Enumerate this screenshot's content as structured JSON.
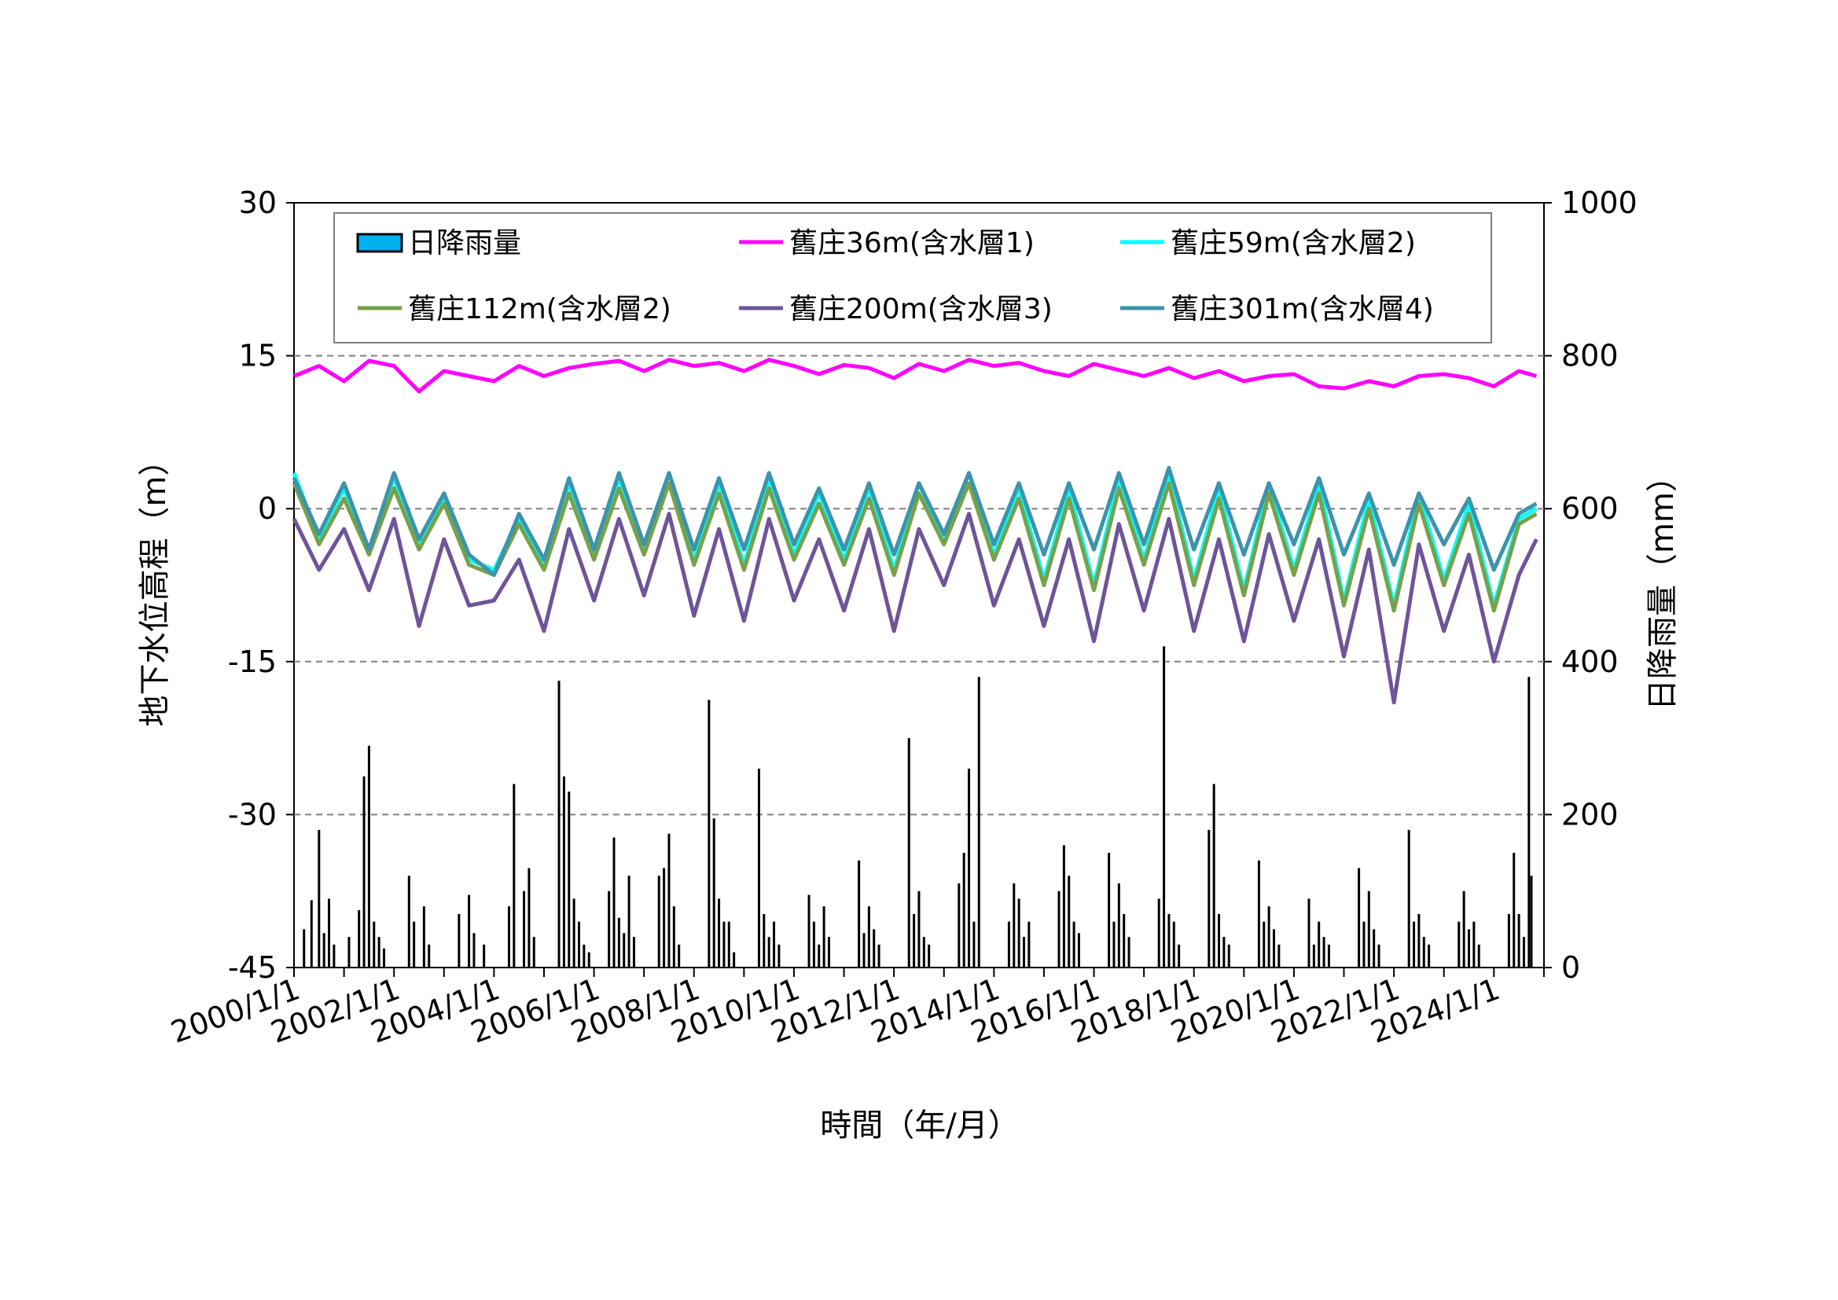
{
  "chart_data": {
    "type": "line",
    "xlabel": "時間（年/月）",
    "ylabel_left": "地下水位高程（m）",
    "ylabel_right": "日降雨量（mm）",
    "ylim_left": [
      -45,
      30
    ],
    "ylim_right": [
      0,
      1000
    ],
    "yticks_left": [
      "30",
      "15",
      "0",
      "-15",
      "-30",
      "-45"
    ],
    "yticks_right": [
      "1000",
      "800",
      "600",
      "400",
      "200",
      "0"
    ],
    "xlim": [
      "2000/1/1",
      "2024/12/31"
    ],
    "xticks": [
      "2000/1/1",
      "2002/1/1",
      "2004/1/1",
      "2006/1/1",
      "2008/1/1",
      "2010/1/1",
      "2012/1/1",
      "2014/1/1",
      "2016/1/1",
      "2018/1/1",
      "2020/1/1",
      "2022/1/1",
      "2024/1/1"
    ],
    "grid": "horizontal dashed",
    "legend_position": "top",
    "legend": [
      {
        "label": "日降雨量",
        "color": "#00b0f0",
        "type": "bar"
      },
      {
        "label": "舊庄36m(含水層1)",
        "color": "#ff00ff",
        "type": "line"
      },
      {
        "label": "舊庄59m(含水層2)",
        "color": "#00ffff",
        "type": "line"
      },
      {
        "label": "舊庄112m(含水層2)",
        "color": "#77a14a",
        "type": "line"
      },
      {
        "label": "舊庄200m(含水層3)",
        "color": "#6e5499",
        "type": "line"
      },
      {
        "label": "舊庄301m(含水層4)",
        "color": "#3d93ab",
        "type": "line"
      }
    ],
    "series": [
      {
        "name": "舊庄36m(含水層1)",
        "color": "#ff00ff",
        "x": [
          2000.0,
          2000.5,
          2001.0,
          2001.5,
          2002.0,
          2002.5,
          2003.0,
          2003.5,
          2004.0,
          2004.5,
          2005.0,
          2005.5,
          2006.0,
          2006.5,
          2007.0,
          2007.5,
          2008.0,
          2008.5,
          2009.0,
          2009.5,
          2010.0,
          2010.5,
          2011.0,
          2011.5,
          2012.0,
          2012.5,
          2013.0,
          2013.5,
          2014.0,
          2014.5,
          2015.0,
          2015.5,
          2016.0,
          2016.5,
          2017.0,
          2017.5,
          2018.0,
          2018.5,
          2019.0,
          2019.5,
          2020.0,
          2020.5,
          2021.0,
          2021.5,
          2022.0,
          2022.5,
          2023.0,
          2023.5,
          2024.0,
          2024.5,
          2024.85
        ],
        "y": [
          13.0,
          14.0,
          12.5,
          14.5,
          14.0,
          11.5,
          13.5,
          13.0,
          12.5,
          14.0,
          13.0,
          13.8,
          14.2,
          14.5,
          13.5,
          14.6,
          14.0,
          14.3,
          13.5,
          14.6,
          14.0,
          13.2,
          14.1,
          13.8,
          12.8,
          14.2,
          13.5,
          14.6,
          14.0,
          14.3,
          13.5,
          13.0,
          14.2,
          13.6,
          13.0,
          13.8,
          12.8,
          13.5,
          12.5,
          13.0,
          13.2,
          12.0,
          11.8,
          12.5,
          12.0,
          13.0,
          13.2,
          12.8,
          12.0,
          13.5,
          13.0
        ]
      },
      {
        "name": "舊庄59m(含水層2)",
        "color": "#00ffff",
        "x": [
          2000.0,
          2000.5,
          2001.0,
          2001.5,
          2002.0,
          2002.5,
          2003.0,
          2003.5,
          2004.0,
          2004.5,
          2005.0,
          2005.5,
          2006.0,
          2006.5,
          2007.0,
          2007.5,
          2008.0,
          2008.5,
          2009.0,
          2009.5,
          2010.0,
          2010.5,
          2011.0,
          2011.5,
          2012.0,
          2012.5,
          2013.0,
          2013.5,
          2014.0,
          2014.5,
          2015.0,
          2015.5,
          2016.0,
          2016.5,
          2017.0,
          2017.5,
          2018.0,
          2018.5,
          2019.0,
          2019.5,
          2020.0,
          2020.5,
          2021.0,
          2021.5,
          2022.0,
          2022.5,
          2023.0,
          2023.5,
          2024.0,
          2024.5,
          2024.85
        ],
        "y": [
          3.5,
          -3.0,
          2.0,
          -4.0,
          3.0,
          -3.5,
          1.0,
          -5.0,
          -6.0,
          -1.0,
          -5.5,
          2.5,
          -4.5,
          3.0,
          -4.0,
          3.5,
          -5.0,
          2.5,
          -5.5,
          3.0,
          -4.5,
          1.5,
          -5.0,
          2.0,
          -6.0,
          2.5,
          -3.0,
          3.5,
          -4.5,
          2.0,
          -7.0,
          2.0,
          -7.5,
          3.0,
          -5.0,
          3.5,
          -7.0,
          2.0,
          -8.0,
          2.5,
          -6.0,
          2.5,
          -9.0,
          1.0,
          -9.5,
          1.5,
          -7.0,
          0.5,
          -9.5,
          -1.0,
          0.0
        ]
      },
      {
        "name": "舊庄112m(含水層2)",
        "color": "#77a14a",
        "x": [
          2000.0,
          2000.5,
          2001.0,
          2001.5,
          2002.0,
          2002.5,
          2003.0,
          2003.5,
          2004.0,
          2004.5,
          2005.0,
          2005.5,
          2006.0,
          2006.5,
          2007.0,
          2007.5,
          2008.0,
          2008.5,
          2009.0,
          2009.5,
          2010.0,
          2010.5,
          2011.0,
          2011.5,
          2012.0,
          2012.5,
          2013.0,
          2013.5,
          2014.0,
          2014.5,
          2015.0,
          2015.5,
          2016.0,
          2016.5,
          2017.0,
          2017.5,
          2018.0,
          2018.5,
          2019.0,
          2019.5,
          2020.0,
          2020.5,
          2021.0,
          2021.5,
          2022.0,
          2022.5,
          2023.0,
          2023.5,
          2024.0,
          2024.5,
          2024.85
        ],
        "y": [
          2.5,
          -3.5,
          1.0,
          -4.5,
          2.0,
          -4.0,
          0.5,
          -5.5,
          -6.5,
          -1.5,
          -6.0,
          1.5,
          -5.0,
          2.0,
          -4.5,
          2.5,
          -5.5,
          1.5,
          -6.0,
          2.0,
          -5.0,
          0.5,
          -5.5,
          1.0,
          -6.5,
          1.5,
          -3.5,
          2.5,
          -5.0,
          1.0,
          -7.5,
          1.0,
          -8.0,
          2.0,
          -5.5,
          2.5,
          -7.5,
          1.0,
          -8.5,
          1.5,
          -6.5,
          1.5,
          -9.5,
          0.0,
          -10.0,
          0.5,
          -7.5,
          -0.5,
          -10.0,
          -1.5,
          -0.5
        ]
      },
      {
        "name": "舊庄200m(含水層3)",
        "color": "#6e5499",
        "x": [
          2000.0,
          2000.5,
          2001.0,
          2001.5,
          2002.0,
          2002.5,
          2003.0,
          2003.5,
          2004.0,
          2004.5,
          2005.0,
          2005.5,
          2006.0,
          2006.5,
          2007.0,
          2007.5,
          2008.0,
          2008.5,
          2009.0,
          2009.5,
          2010.0,
          2010.5,
          2011.0,
          2011.5,
          2012.0,
          2012.5,
          2013.0,
          2013.5,
          2014.0,
          2014.5,
          2015.0,
          2015.5,
          2016.0,
          2016.5,
          2017.0,
          2017.5,
          2018.0,
          2018.5,
          2019.0,
          2019.5,
          2020.0,
          2020.5,
          2021.0,
          2021.5,
          2022.0,
          2022.5,
          2023.0,
          2023.5,
          2024.0,
          2024.5,
          2024.85
        ],
        "y": [
          -1.0,
          -6.0,
          -2.0,
          -8.0,
          -1.0,
          -11.5,
          -3.0,
          -9.5,
          -9.0,
          -5.0,
          -12.0,
          -2.0,
          -9.0,
          -1.0,
          -8.5,
          -0.5,
          -10.5,
          -2.0,
          -11.0,
          -1.0,
          -9.0,
          -3.0,
          -10.0,
          -2.0,
          -12.0,
          -2.0,
          -7.5,
          -0.5,
          -9.5,
          -3.0,
          -11.5,
          -3.0,
          -13.0,
          -1.5,
          -10.0,
          -1.0,
          -12.0,
          -3.0,
          -13.0,
          -2.5,
          -11.0,
          -3.0,
          -14.5,
          -4.0,
          -19.0,
          -3.5,
          -12.0,
          -4.5,
          -15.0,
          -6.5,
          -3.0
        ]
      },
      {
        "name": "舊庄301m(含水層4)",
        "color": "#3d93ab",
        "x": [
          2000.0,
          2000.5,
          2001.0,
          2001.5,
          2002.0,
          2002.5,
          2003.0,
          2003.5,
          2004.0,
          2004.5,
          2005.0,
          2005.5,
          2006.0,
          2006.5,
          2007.0,
          2007.5,
          2008.0,
          2008.5,
          2009.0,
          2009.5,
          2010.0,
          2010.5,
          2011.0,
          2011.5,
          2012.0,
          2012.5,
          2013.0,
          2013.5,
          2014.0,
          2014.5,
          2015.0,
          2015.5,
          2016.0,
          2016.5,
          2017.0,
          2017.5,
          2018.0,
          2018.5,
          2019.0,
          2019.5,
          2020.0,
          2020.5,
          2021.0,
          2021.5,
          2022.0,
          2022.5,
          2023.0,
          2023.5,
          2024.0,
          2024.5,
          2024.85
        ],
        "y": [
          3.0,
          -2.5,
          2.5,
          -4.0,
          3.5,
          -3.0,
          1.5,
          -4.5,
          -6.5,
          -0.5,
          -5.0,
          3.0,
          -4.0,
          3.5,
          -3.5,
          3.5,
          -4.0,
          3.0,
          -4.0,
          3.5,
          -3.5,
          2.0,
          -4.0,
          2.5,
          -4.5,
          2.5,
          -2.5,
          3.5,
          -3.5,
          2.5,
          -4.5,
          2.5,
          -4.0,
          3.5,
          -3.5,
          4.0,
          -4.0,
          2.5,
          -4.5,
          2.5,
          -3.5,
          3.0,
          -4.5,
          1.5,
          -5.5,
          1.5,
          -3.5,
          1.0,
          -6.0,
          -0.5,
          0.5
        ]
      }
    ],
    "rainfall": {
      "name": "日降雨量",
      "unit": "mm",
      "color": "#000000",
      "x": [
        2000.2,
        2000.35,
        2000.5,
        2000.6,
        2000.7,
        2000.8,
        2001.1,
        2001.3,
        2001.4,
        2001.5,
        2001.6,
        2001.7,
        2001.8,
        2002.3,
        2002.4,
        2002.6,
        2002.7,
        2003.3,
        2003.5,
        2003.6,
        2003.8,
        2004.3,
        2004.4,
        2004.6,
        2004.7,
        2004.8,
        2005.3,
        2005.4,
        2005.5,
        2005.6,
        2005.7,
        2005.8,
        2005.9,
        2006.3,
        2006.4,
        2006.5,
        2006.6,
        2006.7,
        2006.8,
        2007.3,
        2007.4,
        2007.5,
        2007.6,
        2007.7,
        2008.3,
        2008.4,
        2008.5,
        2008.6,
        2008.7,
        2008.8,
        2009.3,
        2009.4,
        2009.5,
        2009.6,
        2009.7,
        2010.3,
        2010.4,
        2010.5,
        2010.6,
        2010.7,
        2011.3,
        2011.4,
        2011.5,
        2011.6,
        2011.7,
        2012.3,
        2012.4,
        2012.5,
        2012.6,
        2012.7,
        2013.3,
        2013.4,
        2013.5,
        2013.6,
        2013.7,
        2014.3,
        2014.4,
        2014.5,
        2014.6,
        2014.7,
        2015.3,
        2015.4,
        2015.5,
        2015.6,
        2015.7,
        2016.3,
        2016.4,
        2016.5,
        2016.6,
        2016.7,
        2017.3,
        2017.4,
        2017.5,
        2017.6,
        2017.7,
        2018.3,
        2018.4,
        2018.5,
        2018.6,
        2018.7,
        2019.3,
        2019.4,
        2019.5,
        2019.6,
        2019.7,
        2020.3,
        2020.4,
        2020.5,
        2020.6,
        2020.7,
        2021.3,
        2021.4,
        2021.5,
        2021.6,
        2021.7,
        2022.3,
        2022.4,
        2022.5,
        2022.6,
        2022.7,
        2023.3,
        2023.4,
        2023.5,
        2023.6,
        2023.7,
        2024.3,
        2024.4,
        2024.5,
        2024.6,
        2024.7,
        2024.75
      ],
      "y": [
        50,
        88,
        180,
        45,
        90,
        30,
        40,
        75,
        250,
        290,
        60,
        40,
        25,
        120,
        60,
        80,
        30,
        70,
        95,
        45,
        30,
        80,
        240,
        100,
        130,
        40,
        375,
        250,
        230,
        90,
        60,
        30,
        20,
        100,
        170,
        65,
        45,
        120,
        40,
        120,
        130,
        175,
        80,
        30,
        350,
        195,
        90,
        60,
        60,
        20,
        260,
        70,
        40,
        60,
        30,
        95,
        60,
        30,
        80,
        40,
        140,
        45,
        80,
        50,
        30,
        300,
        70,
        100,
        40,
        30,
        110,
        150,
        260,
        60,
        380,
        60,
        110,
        90,
        40,
        60,
        100,
        160,
        120,
        60,
        45,
        150,
        60,
        110,
        70,
        40,
        90,
        420,
        70,
        60,
        30,
        180,
        240,
        70,
        40,
        30,
        140,
        60,
        80,
        50,
        30,
        90,
        30,
        60,
        40,
        30,
        130,
        60,
        100,
        50,
        30,
        180,
        60,
        70,
        40,
        30,
        60,
        100,
        50,
        60,
        30,
        70,
        150,
        70,
        40,
        380,
        120
      ]
    }
  }
}
